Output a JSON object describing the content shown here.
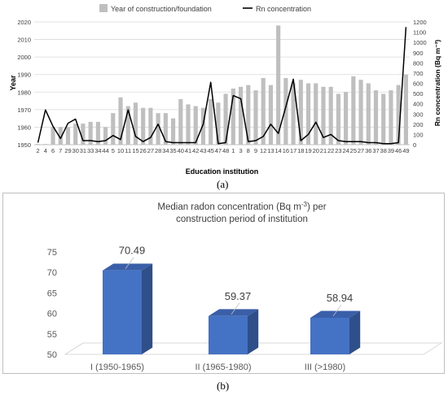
{
  "figure": {
    "panel_a_label": "(a)",
    "panel_b_label": "(b)"
  },
  "chart_data": [
    {
      "type": "bar+line",
      "title": "",
      "legend": [
        "Year of construction/foundation",
        "Rn concentration"
      ],
      "legend_position": "top",
      "xlabel": "Education institution",
      "ylabel_left": "Year",
      "ylabel_right": "Rn concentration (Bq m⁻³)",
      "ylim_left": [
        1950,
        2020
      ],
      "yticks_left": [
        1950,
        1960,
        1970,
        1980,
        1990,
        2000,
        2010,
        2020
      ],
      "ylim_right": [
        0,
        1200
      ],
      "yticks_right": [
        0,
        100,
        200,
        300,
        400,
        500,
        600,
        700,
        800,
        900,
        1000,
        1100,
        1200
      ],
      "categories": [
        "2",
        "4",
        "6",
        "7",
        "29",
        "30",
        "31",
        "33",
        "34",
        "44",
        "5",
        "10",
        "11",
        "15",
        "26",
        "27",
        "28",
        "34",
        "35",
        "40",
        "41",
        "42",
        "43",
        "45",
        "47",
        "48",
        "1",
        "3",
        "8",
        "9",
        "12",
        "13",
        "14",
        "16",
        "17",
        "18",
        "19",
        "20",
        "21",
        "22",
        "23",
        "24",
        "25",
        "27",
        "36",
        "37",
        "38",
        "39",
        "46",
        "49"
      ],
      "series": [
        {
          "name": "Year of construction/foundation",
          "type": "bar",
          "color": "#bfbfbf",
          "values": [
            1950,
            1950,
            1960,
            1960,
            1960,
            1962,
            1962,
            1963,
            1963,
            1960,
            1968,
            1977,
            1972,
            1974,
            1971,
            1971,
            1968,
            1968,
            1965,
            1976,
            1973,
            1972,
            1971,
            1976,
            1974,
            1979,
            1982,
            1983,
            1984,
            1981,
            1988,
            1984,
            2018,
            1988,
            1985,
            1987,
            1985,
            1985,
            1983,
            1983,
            1979,
            1980,
            1989,
            1987,
            1985,
            1981,
            1979,
            1981,
            1984,
            1990
          ]
        },
        {
          "name": "Rn concentration",
          "type": "line",
          "color": "#000000",
          "values": [
            20,
            340,
            180,
            60,
            210,
            250,
            40,
            40,
            30,
            40,
            90,
            50,
            340,
            80,
            30,
            70,
            200,
            30,
            20,
            20,
            20,
            20,
            200,
            610,
            10,
            20,
            480,
            450,
            30,
            40,
            80,
            200,
            110,
            370,
            640,
            40,
            100,
            220,
            70,
            100,
            40,
            30,
            30,
            30,
            20,
            20,
            10,
            10,
            20,
            1150
          ]
        }
      ]
    },
    {
      "type": "bar",
      "title": "Median radon concentration (Bq m⁻³) per construction period of institution",
      "categories": [
        "I (1950-1965)",
        "II (1965-1980)",
        "III (>1980)"
      ],
      "values": [
        70.49,
        59.37,
        58.94
      ],
      "value_labels": [
        "70.49",
        "59.37",
        "58.94"
      ],
      "ylim": [
        50,
        75
      ],
      "yticks": [
        50,
        55,
        60,
        65,
        70,
        75
      ],
      "color": "#4472c4",
      "style": "3d-column"
    }
  ]
}
